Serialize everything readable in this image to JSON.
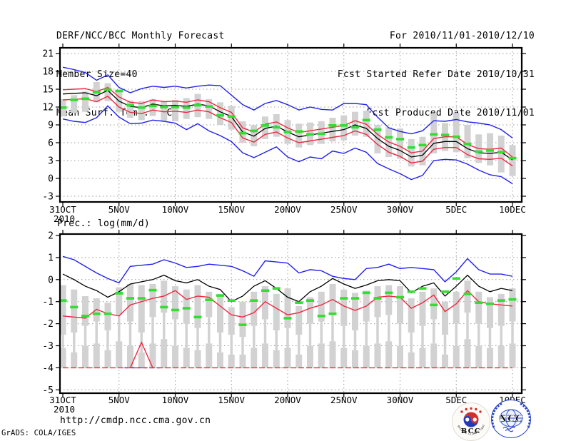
{
  "header": {
    "title": "DERF/NCC/BCC Monthly Forecast",
    "member_size": "Member Size=40",
    "for_line": "For 2010/11/01-2010/12/10",
    "refer_line": "Fcst Started Refer Date 2010/10/31",
    "produced_line": "Fcst Produced Date 2010/11/01"
  },
  "footer": {
    "url": "http://cmdp.ncc.cma.gov.cn",
    "credit": "GrADS: COLA/IGES"
  },
  "logos": {
    "bcc_label": "BCC",
    "bcc_ring_text": "BEIJING CLIMATE CENTER",
    "ncc_label": "NCC"
  },
  "colors": {
    "envelope": "#2222ee",
    "spread": "#ee2840",
    "mean": "#000000",
    "observation": "#33dd33",
    "bar": "#d2d2d2",
    "grid": "#999999"
  },
  "chart_data": [
    {
      "name": "temperature",
      "type": "line",
      "title": "Mean Surf. Temp.: °C",
      "x_tick_labels": [
        "31OCT",
        "5NOV",
        "10NOV",
        "15NOV",
        "20NOV",
        "25NOV",
        "30NOV",
        "5DEC",
        "10DEC"
      ],
      "x_tick_days": [
        0,
        5,
        10,
        15,
        20,
        25,
        30,
        35,
        40
      ],
      "year_label": "2010",
      "x_range_days": [
        0,
        40
      ],
      "ylim": [
        -3,
        21
      ],
      "yticks": [
        21,
        18,
        15,
        12,
        9,
        6,
        3,
        0,
        -3
      ],
      "series": [
        {
          "name": "ensemble-max",
          "color": "#2222ee",
          "values": [
            18.7,
            18.3,
            17.8,
            16.5,
            17.4,
            15.3,
            14.4,
            15.1,
            15.5,
            15.3,
            15.5,
            15.2,
            15.5,
            15.7,
            15.6,
            14.0,
            12.4,
            11.5,
            12.6,
            13.1,
            12.4,
            11.5,
            12.0,
            11.6,
            11.5,
            12.6,
            12.6,
            12.4,
            10.3,
            8.5,
            7.9,
            7.5,
            8.0,
            9.7,
            9.6,
            9.9,
            9.5,
            9.3,
            9.0,
            8.2,
            6.8
          ]
        },
        {
          "name": "upper-spread",
          "color": "#ee2840",
          "values": [
            14.9,
            15.0,
            15.1,
            14.6,
            15.3,
            13.7,
            12.8,
            12.6,
            13.2,
            12.9,
            13.0,
            12.8,
            13.2,
            12.9,
            11.9,
            11.1,
            8.5,
            7.8,
            9.1,
            9.5,
            8.5,
            7.7,
            8.0,
            8.3,
            8.6,
            8.9,
            9.7,
            9.1,
            7.4,
            6.1,
            5.4,
            4.3,
            4.6,
            6.7,
            7.0,
            7.0,
            5.7,
            5.0,
            4.9,
            5.1,
            3.6
          ]
        },
        {
          "name": "ensemble-mean",
          "color": "#000000",
          "values": [
            14.2,
            14.3,
            14.4,
            13.9,
            14.8,
            13.0,
            12.1,
            11.9,
            12.5,
            12.2,
            12.3,
            12.1,
            12.5,
            12.2,
            11.2,
            10.4,
            7.8,
            7.1,
            8.4,
            8.8,
            7.8,
            7.0,
            7.3,
            7.6,
            7.9,
            8.2,
            9.0,
            8.4,
            6.7,
            5.4,
            4.7,
            3.6,
            3.9,
            5.9,
            6.2,
            6.2,
            5.0,
            4.3,
            4.2,
            4.4,
            3.1
          ]
        },
        {
          "name": "lower-spread",
          "color": "#ee2840",
          "values": [
            13.2,
            13.3,
            13.4,
            12.9,
            13.8,
            12.0,
            11.1,
            10.9,
            11.5,
            11.2,
            11.3,
            11.1,
            11.5,
            11.2,
            10.2,
            9.4,
            6.8,
            6.1,
            7.4,
            7.8,
            6.8,
            6.0,
            6.3,
            6.6,
            6.9,
            7.2,
            8.0,
            7.4,
            5.7,
            4.4,
            3.7,
            2.6,
            2.9,
            4.9,
            5.2,
            5.2,
            4.0,
            3.3,
            3.2,
            3.4,
            2.1
          ]
        },
        {
          "name": "ensemble-min",
          "color": "#2222ee",
          "values": [
            10.0,
            9.6,
            9.4,
            10.2,
            12.2,
            10.3,
            9.2,
            9.3,
            9.8,
            9.6,
            9.3,
            8.2,
            9.2,
            8.0,
            7.2,
            6.2,
            4.3,
            3.5,
            4.4,
            5.3,
            3.6,
            2.8,
            3.6,
            3.3,
            4.6,
            4.2,
            5.1,
            4.4,
            2.5,
            1.6,
            0.8,
            -0.2,
            0.5,
            3.0,
            3.2,
            3.1,
            2.4,
            1.4,
            0.6,
            0.3,
            -0.9
          ]
        }
      ],
      "observation_dashes": {
        "color": "#33dd33",
        "values": [
          11.9,
          13.2,
          13.4,
          14.5,
          14.9,
          14.7,
          12.3,
          11.9,
          12.2,
          12.0,
          12.0,
          11.9,
          12.3,
          12.1,
          10.6,
          10.4,
          7.6,
          8.0,
          8.9,
          8.6,
          7.8,
          7.9,
          7.4,
          7.5,
          8.9,
          8.9,
          8.6,
          9.8,
          8.2,
          6.9,
          6.6,
          5.2,
          5.6,
          7.4,
          7.3,
          7.0,
          5.8,
          4.5,
          4.7,
          4.4,
          3.4
        ]
      },
      "bars": {
        "color": "#d2d2d2",
        "ranges": [
          [
            10.4,
            13.3
          ],
          [
            11.0,
            14.0
          ],
          [
            11.2,
            14.6
          ],
          [
            12.8,
            16.2
          ],
          [
            13.0,
            16.0
          ],
          [
            11.2,
            14.9
          ],
          [
            10.2,
            13.1
          ],
          [
            9.8,
            13.0
          ],
          [
            10.5,
            13.3
          ],
          [
            9.7,
            13.0
          ],
          [
            9.6,
            13.2
          ],
          [
            10.0,
            13.5
          ],
          [
            10.3,
            14.2
          ],
          [
            10.0,
            13.3
          ],
          [
            9.0,
            12.8
          ],
          [
            8.2,
            12.2
          ],
          [
            6.0,
            9.6
          ],
          [
            5.4,
            9.0
          ],
          [
            6.6,
            10.4
          ],
          [
            7.0,
            10.8
          ],
          [
            5.8,
            9.8
          ],
          [
            5.2,
            9.2
          ],
          [
            5.6,
            9.4
          ],
          [
            5.8,
            9.6
          ],
          [
            6.2,
            10.2
          ],
          [
            6.4,
            10.6
          ],
          [
            7.2,
            11.2
          ],
          [
            7.0,
            11.4
          ],
          [
            4.2,
            9.0
          ],
          [
            3.6,
            8.6
          ],
          [
            3.3,
            8.4
          ],
          [
            2.0,
            6.6
          ],
          [
            2.2,
            7.0
          ],
          [
            4.2,
            10.9
          ],
          [
            4.6,
            9.3
          ],
          [
            4.4,
            11.0
          ],
          [
            3.4,
            9.0
          ],
          [
            2.6,
            7.4
          ],
          [
            2.2,
            7.6
          ],
          [
            1.0,
            7.2
          ],
          [
            0.4,
            5.6
          ]
        ]
      }
    },
    {
      "name": "precipitation",
      "type": "line",
      "title": "Prec.: log(mm/d)",
      "x_tick_labels": [
        "31OCT",
        "5NOV",
        "10NOV",
        "15NOV",
        "20NOV",
        "25NOV",
        "30NOV",
        "5DEC",
        "10DEC"
      ],
      "x_tick_days": [
        0,
        5,
        10,
        15,
        20,
        25,
        30,
        35,
        40
      ],
      "year_label": "2010",
      "x_range_days": [
        0,
        40
      ],
      "ylim": [
        -5,
        2
      ],
      "yticks": [
        2,
        1,
        0,
        -1,
        -2,
        -3,
        -4,
        -5
      ],
      "series": [
        {
          "name": "ensemble-max",
          "color": "#2222ee",
          "values": [
            1.05,
            0.9,
            0.6,
            0.3,
            0.05,
            -0.15,
            0.6,
            0.65,
            0.7,
            0.9,
            0.75,
            0.55,
            0.6,
            0.7,
            0.65,
            0.6,
            0.4,
            0.15,
            0.85,
            0.8,
            0.75,
            0.3,
            0.45,
            0.4,
            0.15,
            0.05,
            0.0,
            0.5,
            0.55,
            0.7,
            0.5,
            0.55,
            0.5,
            0.45,
            -0.1,
            0.35,
            0.95,
            0.45,
            0.25,
            0.25,
            0.15
          ]
        },
        {
          "name": "ensemble-mean",
          "color": "#000000",
          "values": [
            0.25,
            0.0,
            -0.3,
            -0.5,
            -0.8,
            -0.55,
            -0.2,
            -0.1,
            0.0,
            0.2,
            -0.05,
            -0.15,
            0.0,
            -0.3,
            -0.45,
            -1.0,
            -0.75,
            -0.3,
            -0.05,
            -0.4,
            -0.8,
            -1.0,
            -0.55,
            -0.3,
            0.05,
            -0.2,
            -0.4,
            -0.25,
            -0.05,
            0.0,
            -0.05,
            -0.6,
            -0.3,
            -0.15,
            -0.75,
            -0.3,
            0.2,
            -0.3,
            -0.55,
            -0.4,
            -0.5
          ]
        },
        {
          "name": "lower-spread",
          "color": "#ee2840",
          "values": [
            -1.65,
            -1.7,
            -1.75,
            -1.35,
            -1.55,
            -1.65,
            -1.15,
            -1.0,
            -0.85,
            -0.75,
            -0.5,
            -0.9,
            -0.75,
            -0.8,
            -1.2,
            -1.6,
            -1.7,
            -1.5,
            -1.0,
            -1.3,
            -1.6,
            -1.5,
            -1.3,
            -1.15,
            -0.9,
            -1.2,
            -1.4,
            -1.2,
            -0.8,
            -0.75,
            -0.8,
            -1.3,
            -1.05,
            -0.7,
            -1.45,
            -1.1,
            -0.5,
            -1.0,
            -1.1,
            -1.15,
            -1.2
          ]
        }
      ],
      "observation_dashes": {
        "color": "#33dd33",
        "values": [
          -0.95,
          -1.25,
          -1.65,
          -1.55,
          -1.55,
          -0.62,
          -0.85,
          -0.85,
          -0.48,
          -1.25,
          -1.38,
          -1.3,
          -1.7,
          -0.92,
          -0.72,
          -0.95,
          -2.05,
          -0.95,
          -0.5,
          -0.4,
          -1.75,
          -1.05,
          -0.95,
          -1.65,
          -1.55,
          -0.85,
          -0.85,
          -0.6,
          -0.85,
          -0.6,
          -0.8,
          -0.55,
          -0.4,
          -1.15,
          -0.55,
          0.05,
          -0.65,
          -1.05,
          -1.1,
          -0.95,
          -0.9
        ]
      },
      "bars": {
        "color": "#d2d2d2",
        "base": -4,
        "segments": [
          [
            -0.25,
            -2.5,
            -3.1
          ],
          [
            -0.45,
            -2.4,
            -3.3
          ],
          [
            -0.75,
            -2.1,
            -3.0
          ],
          [
            -0.85,
            -1.9,
            -2.9
          ],
          [
            -1.05,
            -2.3,
            -3.2
          ],
          [
            -0.35,
            -1.6,
            -2.8
          ],
          [
            -0.2,
            -1.9,
            -3.0
          ],
          [
            -0.25,
            -2.4,
            -3.3
          ],
          [
            -0.2,
            -1.7,
            -2.9
          ],
          [
            -0.05,
            -1.5,
            -2.7
          ],
          [
            -0.3,
            -1.8,
            -3.0
          ],
          [
            -0.45,
            -2.0,
            -3.1
          ],
          [
            -0.25,
            -2.2,
            -3.2
          ],
          [
            -0.55,
            -1.7,
            -2.9
          ],
          [
            -0.7,
            -2.4,
            -3.3
          ],
          [
            -1.25,
            -2.5,
            -3.4
          ],
          [
            -1.0,
            -2.6,
            -3.4
          ],
          [
            -0.55,
            -2.1,
            -3.1
          ],
          [
            -0.3,
            -1.8,
            -2.9
          ],
          [
            -0.65,
            -2.3,
            -3.2
          ],
          [
            -0.4,
            -2.2,
            -3.1
          ],
          [
            -1.2,
            -2.5,
            -3.4
          ],
          [
            -0.8,
            -2.0,
            -3.0
          ],
          [
            -0.55,
            -1.9,
            -2.9
          ],
          [
            -0.2,
            -1.6,
            -2.8
          ],
          [
            -0.45,
            -2.1,
            -3.1
          ],
          [
            -0.6,
            -2.3,
            -3.2
          ],
          [
            -0.5,
            -1.9,
            -3.0
          ],
          [
            -0.3,
            -1.7,
            -2.9
          ],
          [
            -0.25,
            -1.6,
            -2.8
          ],
          [
            -0.3,
            -2.0,
            -3.0
          ],
          [
            -0.85,
            -2.4,
            -3.3
          ],
          [
            -0.55,
            -2.1,
            -3.1
          ],
          [
            -0.4,
            -1.8,
            -2.9
          ],
          [
            -1.0,
            -2.5,
            -3.4
          ],
          [
            -0.55,
            -2.0,
            -3.0
          ],
          [
            -0.05,
            -1.5,
            -2.7
          ],
          [
            -0.55,
            -2.0,
            -3.0
          ],
          [
            -0.8,
            -2.2,
            -3.1
          ],
          [
            -0.65,
            -2.1,
            -3.0
          ],
          [
            -0.4,
            -1.9,
            -2.9
          ]
        ]
      },
      "floor_lines": {
        "red": {
          "color": "#ee2840",
          "value": -4,
          "spike_day": 7,
          "spike_value": -2.85,
          "spike_start": 6,
          "spike_end": 8
        },
        "blue": {
          "color": "#2222ee",
          "value": -4,
          "start_day": 5.5,
          "end_day": 8.7
        }
      }
    }
  ]
}
